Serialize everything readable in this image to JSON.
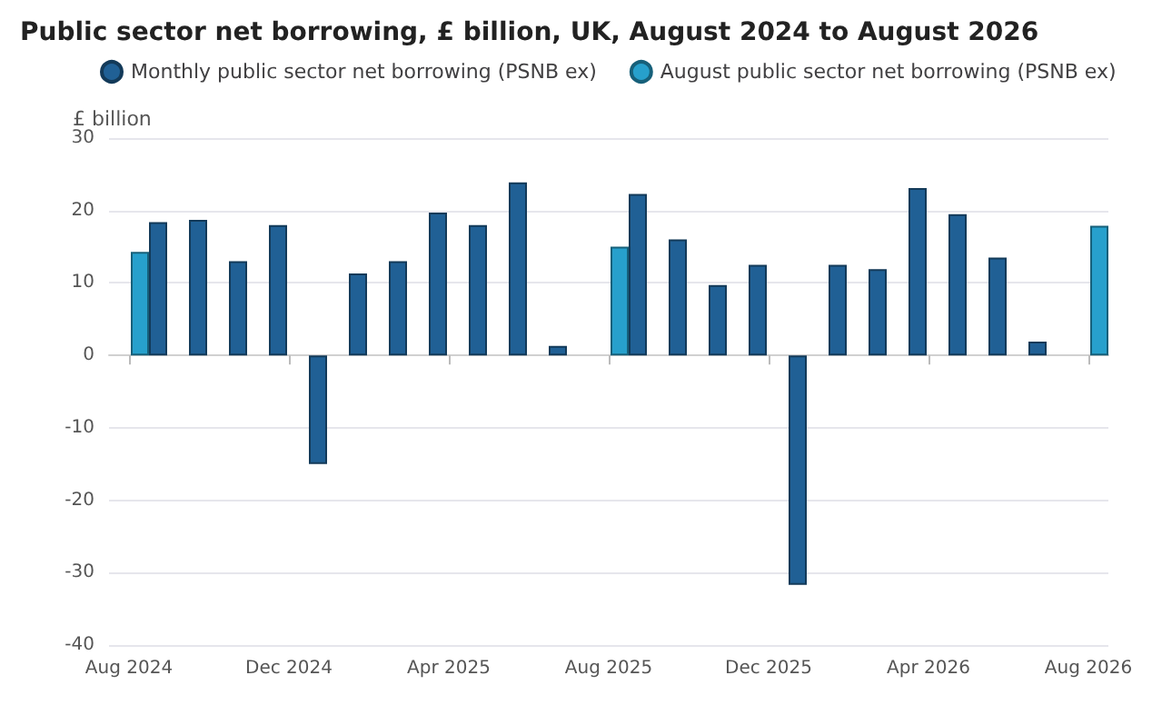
{
  "chart_data": {
    "type": "bar",
    "title": "Public sector net borrowing, £ billion, UK, August 2024 to August 2026",
    "ylabel": "£ billion",
    "categories": [
      "Aug 2024",
      null,
      null,
      null,
      "Dec 2024",
      null,
      null,
      null,
      "Apr 2025",
      null,
      null,
      null,
      "Aug 2025",
      null,
      null,
      null,
      "Dec 2025",
      null,
      null,
      null,
      "Apr 2026",
      null,
      null,
      null,
      "Aug 2026"
    ],
    "series": [
      {
        "name": "Monthly public sector net borrowing (PSNB ex)",
        "color": "#206095",
        "values": [
          null,
          18.4,
          18.7,
          13.0,
          18.0,
          -15.0,
          11.3,
          13.0,
          19.7,
          18.0,
          23.9,
          1.3,
          null,
          22.3,
          16.0,
          9.7,
          12.5,
          -31.7,
          12.5,
          11.9,
          23.1,
          19.5,
          13.5,
          1.9,
          null
        ]
      },
      {
        "name": "August public sector net borrowing (PSNB ex)",
        "color": "#27a0cc",
        "values": [
          14.3,
          null,
          null,
          null,
          null,
          null,
          null,
          null,
          null,
          null,
          null,
          null,
          15.0,
          null,
          null,
          null,
          null,
          null,
          null,
          null,
          null,
          null,
          null,
          null,
          17.9
        ]
      }
    ],
    "ylim": [
      -40,
      30
    ],
    "yticks": [
      -40,
      -30,
      -20,
      -10,
      0,
      10,
      20,
      30
    ],
    "grid": "y",
    "legend": "top left"
  }
}
